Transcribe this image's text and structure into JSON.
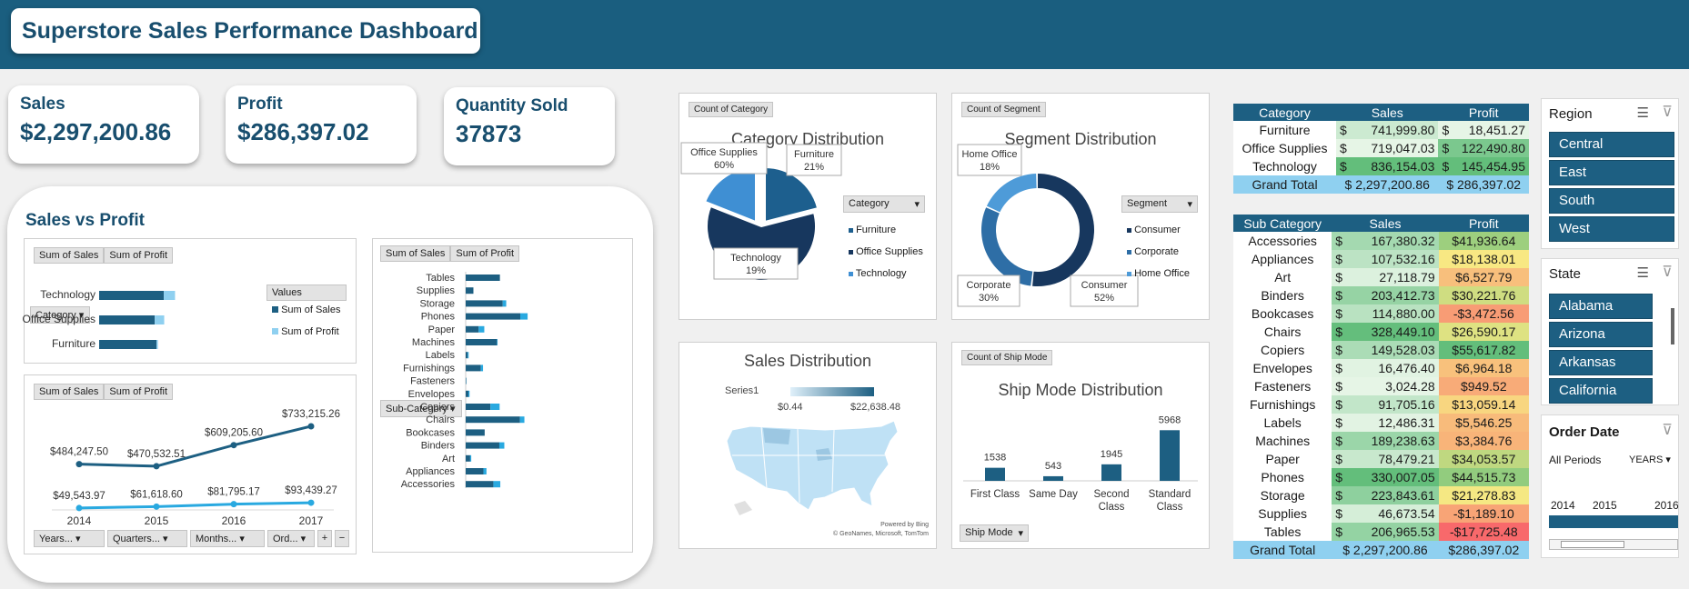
{
  "header": {
    "title": "Superstore Sales Performance Dashboard"
  },
  "kpis": [
    {
      "label": "Sales",
      "value": "$2,297,200.86"
    },
    {
      "label": "Profit",
      "value": "$286,397.02"
    },
    {
      "label": "Quantity Sold",
      "value": "37873"
    }
  ],
  "svp": {
    "title": "Sales vs Profit",
    "btn_sales": "Sum of Sales",
    "btn_profit": "Sum of Profit",
    "cat_filter": "Category",
    "values_label": "Values",
    "legend_sales": "Sum of Sales",
    "legend_profit": "Sum of Profit",
    "sub_filter": "Sub-Category",
    "time_filters": [
      "Years...",
      "Quarters...",
      "Months...",
      "Ord..."
    ]
  },
  "chart_data": [
    {
      "type": "bar",
      "name": "category_sales_profit",
      "categories": [
        "Technology",
        "Office Supplies",
        "Furniture"
      ],
      "series": [
        {
          "name": "Sum of Sales",
          "values": [
            836154.03,
            719047.03,
            741999.8
          ]
        },
        {
          "name": "Sum of Profit",
          "values": [
            145454.95,
            122490.8,
            18451.27
          ]
        }
      ]
    },
    {
      "type": "line",
      "name": "yearly_sales_profit",
      "x": [
        "2014",
        "2015",
        "2016",
        "2017"
      ],
      "series": [
        {
          "name": "Sum of Sales",
          "values": [
            484247.5,
            470532.51,
            609205.6,
            733215.26
          ],
          "labels": [
            "$484,247.50",
            "$470,532.51",
            "$609,205.60",
            "$733,215.26"
          ]
        },
        {
          "name": "Sum of Profit",
          "values": [
            49543.97,
            61618.6,
            81795.17,
            93439.27
          ],
          "labels": [
            "$49,543.97",
            "$61,618.60",
            "$81,795.17",
            "$93,439.27"
          ]
        }
      ]
    },
    {
      "type": "bar",
      "name": "subcategory_sales_profit",
      "categories": [
        "Tables",
        "Supplies",
        "Storage",
        "Phones",
        "Paper",
        "Machines",
        "Labels",
        "Furnishings",
        "Fasteners",
        "Envelopes",
        "Copiers",
        "Chairs",
        "Bookcases",
        "Binders",
        "Art",
        "Appliances",
        "Accessories"
      ],
      "series": [
        {
          "name": "Sum of Sales",
          "values": [
            206965.53,
            46673.54,
            223843.61,
            330007.05,
            78479.21,
            189238.63,
            12486.31,
            91705.16,
            3024.28,
            16476.4,
            149528.03,
            328449.1,
            114880.0,
            203412.73,
            27118.79,
            107532.16,
            167380.32
          ]
        },
        {
          "name": "Sum of Profit",
          "values": [
            -17725.48,
            -1189.1,
            21278.83,
            44515.73,
            34053.57,
            3384.76,
            5546.25,
            13059.14,
            949.52,
            6964.18,
            55617.82,
            26590.17,
            -3472.56,
            30221.76,
            6527.79,
            18138.01,
            41936.64
          ]
        }
      ]
    },
    {
      "type": "pie",
      "name": "category_distribution",
      "title": "Category Distribution",
      "labels": [
        "Furniture",
        "Office Supplies",
        "Technology"
      ],
      "values": [
        21,
        60,
        19
      ],
      "colors": [
        "#1d5f8e",
        "#17375e",
        "#3f8fd3"
      ]
    },
    {
      "type": "pie",
      "name": "segment_distribution",
      "title": "Segment Distribution",
      "labels": [
        "Consumer",
        "Corporate",
        "Home Office"
      ],
      "values": [
        52,
        30,
        18
      ],
      "colors": [
        "#17375e",
        "#2e6ea6",
        "#4e9bd8"
      ]
    },
    {
      "type": "bar",
      "name": "ship_mode",
      "title": "Ship Mode Distribution",
      "categories": [
        "First Class",
        "Same Day",
        "Second Class",
        "Standard Class"
      ],
      "values": [
        1538,
        543,
        1945,
        5968
      ]
    }
  ],
  "category_panel": {
    "tag": "Count of Category",
    "filter": "Category",
    "slices": [
      {
        "name": "Furniture",
        "pct": "21%"
      },
      {
        "name": "Office Supplies",
        "pct": "60%"
      },
      {
        "name": "Technology",
        "pct": "19%"
      }
    ]
  },
  "segment_panel": {
    "tag": "Count of Segment",
    "filter": "Segment",
    "slices": [
      {
        "name": "Consumer",
        "pct": "52%"
      },
      {
        "name": "Corporate",
        "pct": "30%"
      },
      {
        "name": "Home Office",
        "pct": "18%"
      }
    ]
  },
  "sales_map": {
    "title": "Sales Distribution",
    "series": "Series1",
    "min": "$0.44",
    "max": "$22,638.48",
    "credit1": "Powered by Bing",
    "credit2": "© GeoNames, Microsoft, TomTom"
  },
  "ship_panel": {
    "tag": "Count of Ship Mode",
    "filter": "Ship Mode",
    "cats": [
      "First Class",
      "Same Day",
      "Second\nClass",
      "Standard\nClass"
    ],
    "vals": [
      "1538",
      "543",
      "1945",
      "5968"
    ]
  },
  "cat_table": {
    "headers": [
      "Category",
      "Sales",
      "Profit"
    ],
    "rows": [
      {
        "name": "Furniture",
        "sales": "741,999.80",
        "profit": "18,451.27"
      },
      {
        "name": "Office Supplies",
        "sales": "719,047.03",
        "profit": "122,490.80"
      },
      {
        "name": "Technology",
        "sales": "836,154.03",
        "profit": "145,454.95"
      }
    ],
    "total": {
      "name": "Grand Total",
      "sales": "$ 2,297,200.86",
      "profit": "$    286,397.02"
    }
  },
  "sub_table": {
    "headers": [
      "Sub Category",
      "Sales",
      "Profit"
    ],
    "rows": [
      {
        "name": "Accessories",
        "sales": "167,380.32",
        "profit": "$41,936.64"
      },
      {
        "name": "Appliances",
        "sales": "107,532.16",
        "profit": "$18,138.01"
      },
      {
        "name": "Art",
        "sales": "27,118.79",
        "profit": "$6,527.79"
      },
      {
        "name": "Binders",
        "sales": "203,412.73",
        "profit": "$30,221.76"
      },
      {
        "name": "Bookcases",
        "sales": "114,880.00",
        "profit": "-$3,472.56"
      },
      {
        "name": "Chairs",
        "sales": "328,449.10",
        "profit": "$26,590.17"
      },
      {
        "name": "Copiers",
        "sales": "149,528.03",
        "profit": "$55,617.82"
      },
      {
        "name": "Envelopes",
        "sales": "16,476.40",
        "profit": "$6,964.18"
      },
      {
        "name": "Fasteners",
        "sales": "3,024.28",
        "profit": "$949.52"
      },
      {
        "name": "Furnishings",
        "sales": "91,705.16",
        "profit": "$13,059.14"
      },
      {
        "name": "Labels",
        "sales": "12,486.31",
        "profit": "$5,546.25"
      },
      {
        "name": "Machines",
        "sales": "189,238.63",
        "profit": "$3,384.76"
      },
      {
        "name": "Paper",
        "sales": "78,479.21",
        "profit": "$34,053.57"
      },
      {
        "name": "Phones",
        "sales": "330,007.05",
        "profit": "$44,515.73"
      },
      {
        "name": "Storage",
        "sales": "223,843.61",
        "profit": "$21,278.83"
      },
      {
        "name": "Supplies",
        "sales": "46,673.54",
        "profit": "-$1,189.10"
      },
      {
        "name": "Tables",
        "sales": "206,965.53",
        "profit": "-$17,725.48"
      }
    ],
    "total": {
      "name": "Grand Total",
      "sales": "$ 2,297,200.86",
      "profit": "$286,397.02"
    }
  },
  "currency": "$",
  "region_slicer": {
    "title": "Region",
    "items": [
      "Central",
      "East",
      "South",
      "West"
    ]
  },
  "state_slicer": {
    "title": "State",
    "items": [
      "Alabama",
      "Arizona",
      "Arkansas",
      "California"
    ]
  },
  "date_slicer": {
    "title": "Order Date",
    "periods": "All Periods",
    "level": "YEARS",
    "years": [
      "2014",
      "2015",
      "2016"
    ]
  }
}
